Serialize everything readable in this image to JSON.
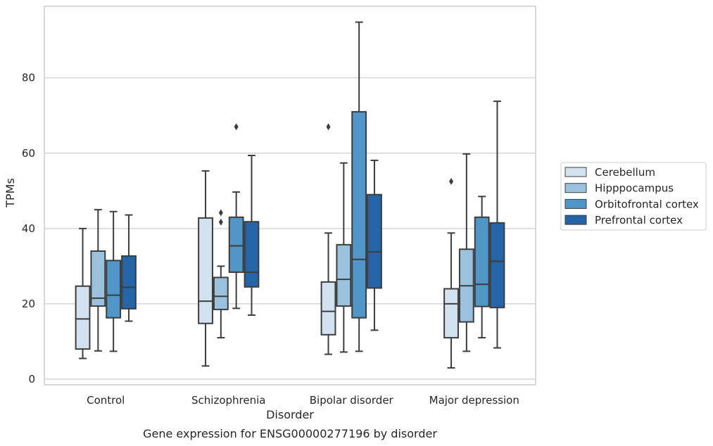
{
  "chart_data": {
    "type": "box",
    "xlabel": "Disorder",
    "ylabel": "TPMs",
    "caption": "Gene expression for ENSG00000277196 by disorder",
    "ylim": [
      -1.5,
      99
    ],
    "yticks": [
      0,
      20,
      40,
      60,
      80
    ],
    "grid": true,
    "legend_position": "right",
    "categories": [
      "Control",
      "Schizophrenia",
      "Bipolar disorder",
      "Major depression"
    ],
    "series": [
      {
        "name": "Cerebellum",
        "color": "#d3e2f0",
        "boxes": [
          {
            "min": 5.5,
            "q1": 8,
            "median": 16,
            "q3": 24.7,
            "max": 40,
            "outliers": []
          },
          {
            "min": 3.5,
            "q1": 14.8,
            "median": 20.7,
            "q3": 42.8,
            "max": 55.3,
            "outliers": []
          },
          {
            "min": 6.6,
            "q1": 11.8,
            "median": 18,
            "q3": 25.8,
            "max": 38.8,
            "outliers": [
              67
            ]
          },
          {
            "min": 3,
            "q1": 11,
            "median": 20,
            "q3": 24,
            "max": 38.8,
            "outliers": [
              52.5
            ]
          }
        ]
      },
      {
        "name": "Hipppocampus",
        "color": "#9ac2dc",
        "boxes": [
          {
            "min": 7.5,
            "q1": 19.4,
            "median": 21.5,
            "q3": 34,
            "max": 45,
            "outliers": []
          },
          {
            "min": 11,
            "q1": 18.5,
            "median": 22,
            "q3": 27,
            "max": 30,
            "outliers": [
              41.7,
              44.2
            ]
          },
          {
            "min": 7.2,
            "q1": 19.4,
            "median": 26.5,
            "q3": 35.7,
            "max": 57.4,
            "outliers": []
          },
          {
            "min": 7.4,
            "q1": 15.2,
            "median": 24.8,
            "q3": 34.5,
            "max": 59.8,
            "outliers": []
          }
        ]
      },
      {
        "name": "Orbitofrontal cortex",
        "color": "#5096c6",
        "boxes": [
          {
            "min": 7.4,
            "q1": 16.3,
            "median": 22.3,
            "q3": 31.5,
            "max": 44.5,
            "outliers": []
          },
          {
            "min": 18.8,
            "q1": 28.4,
            "median": 35.4,
            "q3": 43,
            "max": 49.7,
            "outliers": [
              67
            ]
          },
          {
            "min": 7.4,
            "q1": 16.3,
            "median": 31.8,
            "q3": 71,
            "max": 94.8,
            "outliers": []
          },
          {
            "min": 11,
            "q1": 19.3,
            "median": 25.2,
            "q3": 43,
            "max": 48.5,
            "outliers": []
          }
        ]
      },
      {
        "name": "Prefrontal cortex",
        "color": "#2464a7",
        "boxes": [
          {
            "min": 15.4,
            "q1": 18.7,
            "median": 24.4,
            "q3": 32.7,
            "max": 43.6,
            "outliers": []
          },
          {
            "min": 17,
            "q1": 24.5,
            "median": 28.4,
            "q3": 41.8,
            "max": 59.4,
            "outliers": []
          },
          {
            "min": 13,
            "q1": 24.2,
            "median": 33.8,
            "q3": 49,
            "max": 58.1,
            "outliers": []
          },
          {
            "min": 8.3,
            "q1": 19,
            "median": 31.3,
            "q3": 41.5,
            "max": 73.8,
            "outliers": []
          }
        ]
      }
    ]
  }
}
